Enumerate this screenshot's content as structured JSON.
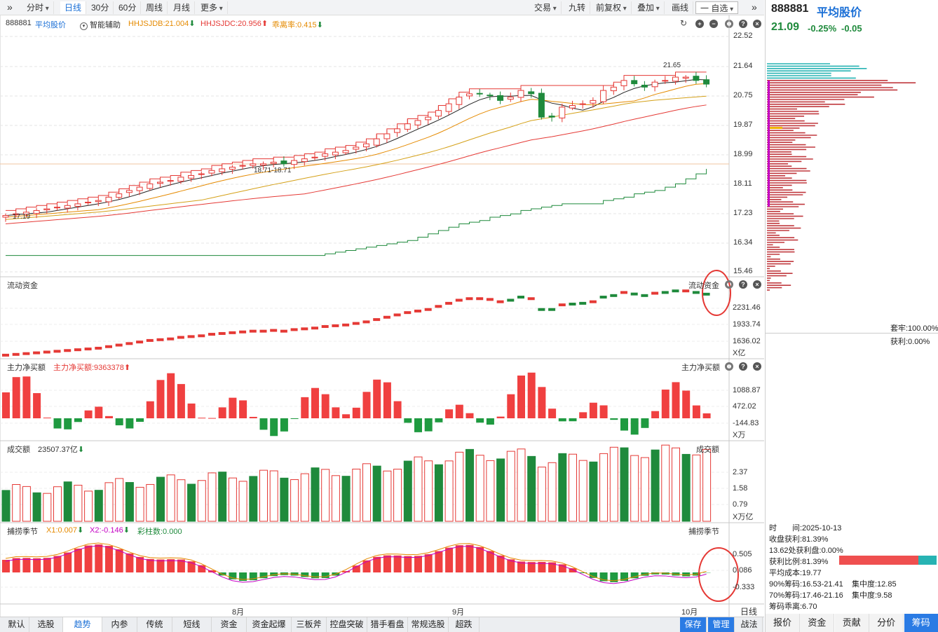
{
  "toolbar": {
    "left_items": [
      {
        "label": "分时",
        "dropdown": true
      },
      {
        "label": "日线",
        "active": true
      },
      {
        "label": "30分"
      },
      {
        "label": "60分"
      },
      {
        "label": "周线"
      },
      {
        "label": "月线"
      },
      {
        "label": "更多",
        "dropdown": true
      }
    ],
    "right_items": [
      {
        "label": "交易",
        "dropdown": true
      },
      {
        "label": "九转"
      },
      {
        "label": "前复权",
        "dropdown": true
      },
      {
        "label": "叠加",
        "dropdown": true
      },
      {
        "label": "画线"
      },
      {
        "label": "一 自选",
        "dropdown": true
      }
    ]
  },
  "main_chart": {
    "code": "888881",
    "name": "平均股价",
    "assist_label": "智能辅助",
    "indicators": [
      {
        "label": "HHJSJDB:21.004",
        "color": "#e58a00",
        "arrow": "down"
      },
      {
        "label": "HHJSJDC:20.956",
        "color": "#e53935",
        "arrow": "up"
      },
      {
        "label": "乖离率:0.415",
        "color": "#e58a00",
        "arrow": "down"
      }
    ],
    "y_ticks": [
      "22.52",
      "21.64",
      "20.75",
      "19.87",
      "18.99",
      "18.11",
      "17.23",
      "16.34",
      "15.46"
    ],
    "annotations": [
      "21.65",
      "18.71-18.71",
      "17.19"
    ]
  },
  "flow_pane": {
    "title": "流动资金",
    "title_right": "流动资金",
    "y_ticks": [
      "2231.46",
      "1933.74",
      "1636.02"
    ],
    "unit": "X亿"
  },
  "net_pane": {
    "title": "主力净买额",
    "value_label": "主力净买额:9363378",
    "title_right": "主力净买额",
    "y_ticks": [
      "1088.87",
      "472.02",
      "-144.83"
    ],
    "unit": "X万"
  },
  "volume_pane": {
    "title": "成交额",
    "value_label": "23507.37亿",
    "title_right": "成交额",
    "y_ticks": [
      "2.37",
      "1.58",
      "0.79"
    ],
    "unit": "X万亿"
  },
  "season_pane": {
    "title": "捕捞季节",
    "x1_label": "X1:0.007",
    "x2_label": "X2:-0.146",
    "bar_label": "彩柱数:0.000",
    "title_right": "捕捞季节",
    "y_ticks": [
      "0.505",
      "0.086",
      "-0.333"
    ]
  },
  "x_axis": {
    "labels": [
      "8月",
      "9月",
      "10月"
    ],
    "period_tag": "日线"
  },
  "bottom_tabs": [
    "默认",
    "选股",
    "趋势",
    "内参",
    "传统",
    "短线",
    "资金",
    "资金起爆",
    "三板斧",
    "控盘突破",
    "猎手看盘",
    "常规选股",
    "超跌"
  ],
  "bottom_active": "趋势",
  "bottom_right": [
    "保存",
    "管理",
    "战法"
  ],
  "quote": {
    "code": "888881",
    "name": "平均股价",
    "price": "21.09",
    "change_pct": "-0.25%",
    "change": "-0.05"
  },
  "chip": {
    "trapped": "套牢:100.00%",
    "profit": "获利:0.00%",
    "time_label": "时　　间:2025-10-13",
    "close_profit": "收盘获利:81.39%",
    "at_price_profit": "13.62处获利盘:0.00%",
    "profit_ratio": "获利比例:81.39%",
    "profit_ratio_value": 0.8139,
    "avg_cost": "平均成本:19.77",
    "chip90": "90%筹码:16.53-21.41",
    "conc90": "集中度:12.85",
    "chip70": "70%筹码:17.46-21.16",
    "conc70": "集中度:9.58",
    "deviation": "筹码乖离:6.70"
  },
  "right_tabs": [
    "报价",
    "资金",
    "贡献",
    "分价",
    "筹码"
  ],
  "right_active": "筹码",
  "colors": {
    "up": "#e53935",
    "down": "#1f8a3c",
    "accent": "#1a6fd6",
    "circle": "#e53935"
  }
}
